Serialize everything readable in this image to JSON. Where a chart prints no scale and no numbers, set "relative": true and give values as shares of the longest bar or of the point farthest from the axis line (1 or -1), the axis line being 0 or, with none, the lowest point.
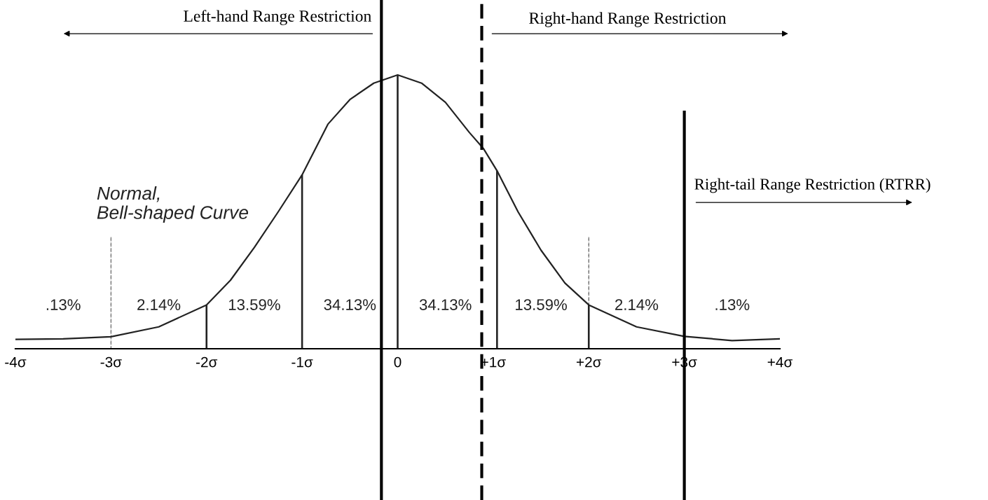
{
  "chart_data": {
    "type": "line",
    "relative": true,
    "xlim": [
      -4,
      4
    ],
    "xticks": [
      {
        "value": -4,
        "label": "-4σ"
      },
      {
        "value": -3,
        "label": "-3σ"
      },
      {
        "value": -2,
        "label": "-2σ"
      },
      {
        "value": -1,
        "label": "-1σ"
      },
      0,
      {
        "value": 1,
        "label": "+1σ"
      },
      {
        "value": 2,
        "label": "+2σ"
      },
      {
        "value": 3,
        "label": "+3σ"
      },
      {
        "value": 4,
        "label": "+4σ"
      }
    ],
    "tick_labels": "x",
    "grid": false,
    "marker": "none",
    "line_style": "solid",
    "series": [
      {
        "color": "#222222",
        "x": [
          -4,
          -3.5,
          -3,
          -2.5,
          -2,
          -1.75,
          -1.5,
          -1.25,
          -1,
          -0.73,
          -0.5,
          -0.25,
          0,
          0.25,
          0.5,
          0.75,
          0.9,
          1.04,
          1.26,
          1.5,
          1.75,
          2,
          2.5,
          3,
          3.5,
          4
        ],
        "values": [
          0.034,
          0.036,
          0.044,
          0.08,
          0.16,
          0.25,
          0.37,
          0.5,
          0.635,
          0.82,
          0.91,
          0.97,
          1.0,
          0.97,
          0.9,
          0.79,
          0.73,
          0.65,
          0.5,
          0.36,
          0.24,
          0.16,
          0.08,
          0.045,
          0.03,
          0.036
        ]
      },
      {
        "type": "bar",
        "color": "#555555",
        "line_style": "dashed",
        "x": [
          -3,
          2
        ],
        "values": [
          0.41,
          0.41
        ]
      },
      {
        "type": "bar",
        "color": "#222222",
        "line_style": "solid",
        "x": [
          -2,
          -1,
          0,
          1.04,
          2
        ],
        "values": [
          0.16,
          0.635,
          1.0,
          0.65,
          0.16
        ]
      }
    ],
    "ref_lines": [
      {
        "axis": "x",
        "value": -0.17,
        "label": "Left-hand Range Restriction",
        "color": "#000000",
        "line_style": "solid"
      },
      {
        "axis": "x",
        "value": 0.88,
        "label": "Right-hand Range Restriction",
        "color": "#000000",
        "line_style": "dashed"
      },
      {
        "axis": "x",
        "value": 3,
        "label": "Right-tail Range Restriction (RTRR)",
        "color": "#000000",
        "line_style": "solid"
      }
    ],
    "annotations": [
      "Normal,\nBell-shaped Curve",
      ".13%",
      "2.14%",
      "13.59%",
      "34.13%",
      "34.13%",
      "13.59%",
      "2.14%",
      ".13%"
    ]
  }
}
